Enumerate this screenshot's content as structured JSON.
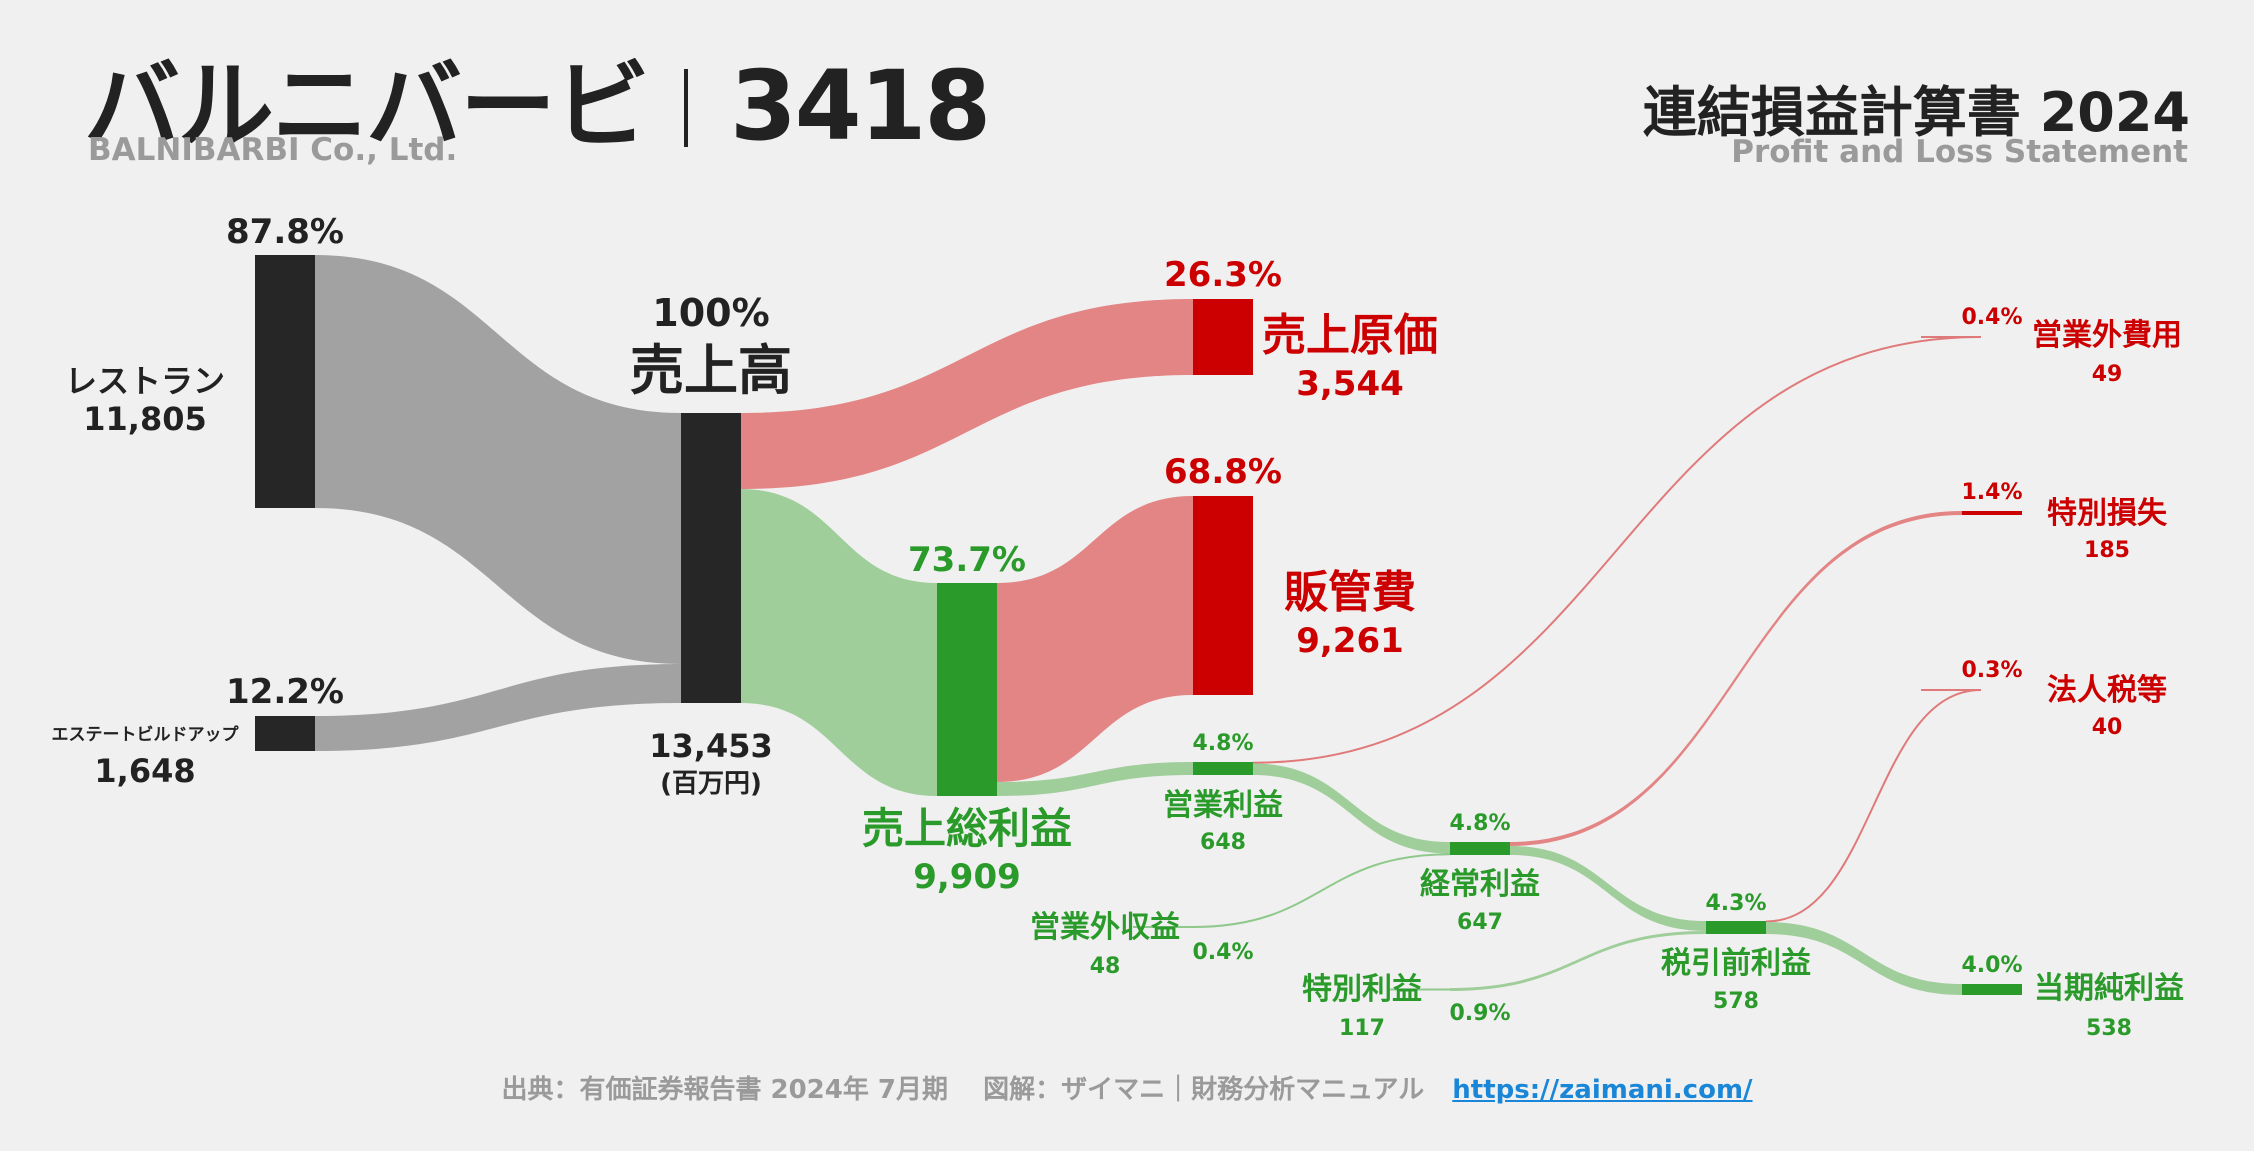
{
  "header": {
    "company_name": "バルニバービ",
    "ticker": "3418",
    "company_en": "BALNIBARBI Co., Ltd.",
    "statement_title": "連結損益計算書 2024",
    "statement_subtitle": "Profit and Loss Statement"
  },
  "footer": {
    "source": "出典：有価証券報告書 2024年 7月期　 図解：ザイマニ｜財務分析マニュアル",
    "link": "https://zaimani.com/"
  },
  "colors": {
    "bar_dark": "#262626",
    "flow_gray": "#a2a2a2",
    "flow_red": "#e38585",
    "flow_green": "#9fce9b",
    "node_red": "#cc0000",
    "node_green": "#2a9a2a",
    "text_dark": "#222222",
    "text_red": "#cc0000",
    "text_green": "#2a9a2a"
  },
  "chart_data": {
    "type": "sankey",
    "unit": "(百万円)",
    "nodes": [
      {
        "id": "restaurant",
        "name": "レストラン",
        "value": "11,805",
        "pct": "87.8%"
      },
      {
        "id": "estate",
        "name": "エステートビルドアップ",
        "value": "1,648",
        "pct": "12.2%"
      },
      {
        "id": "revenue",
        "name": "売上高",
        "value": "13,453",
        "pct": "100%"
      },
      {
        "id": "cogs",
        "name": "売上原価",
        "value": "3,544",
        "pct": "26.3%"
      },
      {
        "id": "sga",
        "name": "販管費",
        "value": "9,261",
        "pct": "68.8%"
      },
      {
        "id": "gross",
        "name": "売上総利益",
        "value": "9,909",
        "pct": "73.7%"
      },
      {
        "id": "op",
        "name": "営業利益",
        "value": "648",
        "pct": "4.8%"
      },
      {
        "id": "nonop_inc",
        "name": "営業外収益",
        "value": "48",
        "pct": "0.4%"
      },
      {
        "id": "nonop_exp",
        "name": "営業外費用",
        "value": "49",
        "pct": "0.4%"
      },
      {
        "id": "ordinary",
        "name": "経常利益",
        "value": "647",
        "pct": "4.8%"
      },
      {
        "id": "special_gain",
        "name": "特別利益",
        "value": "117",
        "pct": "0.9%"
      },
      {
        "id": "special_loss",
        "name": "特別損失",
        "value": "185",
        "pct": "1.4%"
      },
      {
        "id": "pretax",
        "name": "税引前利益",
        "value": "578",
        "pct": "4.3%"
      },
      {
        "id": "tax",
        "name": "法人税等",
        "value": "40",
        "pct": "0.3%"
      },
      {
        "id": "net",
        "name": "当期純利益",
        "value": "538",
        "pct": "4.0%"
      }
    ],
    "links": [
      {
        "source": "restaurant",
        "target": "revenue",
        "value": 11805
      },
      {
        "source": "estate",
        "target": "revenue",
        "value": 1648
      },
      {
        "source": "revenue",
        "target": "cogs",
        "value": 3544
      },
      {
        "source": "revenue",
        "target": "gross",
        "value": 9909
      },
      {
        "source": "gross",
        "target": "sga",
        "value": 9261
      },
      {
        "source": "gross",
        "target": "op",
        "value": 648
      },
      {
        "source": "op",
        "target": "nonop_exp",
        "value": 49
      },
      {
        "source": "op",
        "target": "ordinary",
        "value": 599
      },
      {
        "source": "nonop_inc",
        "target": "ordinary",
        "value": 48
      },
      {
        "source": "ordinary",
        "target": "special_loss",
        "value": 185
      },
      {
        "source": "ordinary",
        "target": "pretax",
        "value": 462
      },
      {
        "source": "special_gain",
        "target": "pretax",
        "value": 117
      },
      {
        "source": "pretax",
        "target": "tax",
        "value": 40
      },
      {
        "source": "pretax",
        "target": "net",
        "value": 538
      }
    ]
  }
}
